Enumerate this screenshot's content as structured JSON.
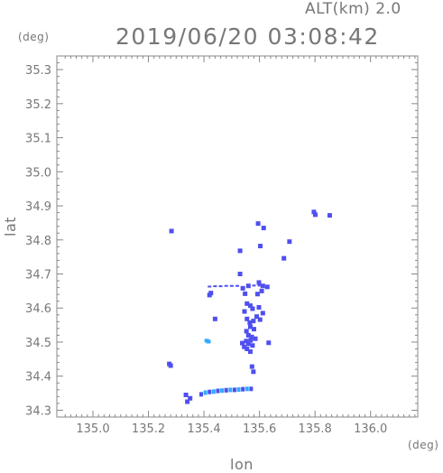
{
  "header": {
    "alt_label": "ALT(km)  2.0",
    "timestamp": "2019/06/20 03:08:42"
  },
  "chart_data": {
    "type": "scatter",
    "title": "2019/06/20 03:08:42",
    "xlabel": "lon",
    "ylabel": "lat",
    "x_unit": "(deg)",
    "y_unit": "(deg)",
    "xlim": [
      134.87,
      136.17
    ],
    "ylim": [
      34.28,
      35.34
    ],
    "xticks": [
      "135.0",
      "135.2",
      "135.4",
      "135.6",
      "135.8",
      "136.0"
    ],
    "yticks": [
      "34.3",
      "34.4",
      "34.5",
      "34.6",
      "34.7",
      "34.8",
      "34.9",
      "35.0",
      "35.1",
      "35.2",
      "35.3"
    ],
    "grid": false,
    "colors": {
      "primary": "#4f4ff0",
      "light": "#33aaff",
      "axis": "#888888"
    },
    "points": [
      {
        "x": 135.595,
        "y": 34.848
      },
      {
        "x": 135.615,
        "y": 34.835
      },
      {
        "x": 135.603,
        "y": 34.782
      },
      {
        "x": 135.53,
        "y": 34.768
      },
      {
        "x": 135.688,
        "y": 34.746
      },
      {
        "x": 135.708,
        "y": 34.795
      },
      {
        "x": 135.796,
        "y": 34.882
      },
      {
        "x": 135.801,
        "y": 34.874
      },
      {
        "x": 135.853,
        "y": 34.872
      },
      {
        "x": 135.283,
        "y": 34.826
      },
      {
        "x": 135.53,
        "y": 34.7
      },
      {
        "x": 135.54,
        "y": 34.658
      },
      {
        "x": 135.56,
        "y": 34.665
      },
      {
        "x": 135.548,
        "y": 34.642
      },
      {
        "x": 135.42,
        "y": 34.638
      },
      {
        "x": 135.425,
        "y": 34.644
      },
      {
        "x": 135.598,
        "y": 34.675
      },
      {
        "x": 135.612,
        "y": 34.665
      },
      {
        "x": 135.608,
        "y": 34.65
      },
      {
        "x": 135.628,
        "y": 34.662
      },
      {
        "x": 135.593,
        "y": 34.641
      },
      {
        "x": 135.555,
        "y": 34.613
      },
      {
        "x": 135.567,
        "y": 34.607
      },
      {
        "x": 135.546,
        "y": 34.59
      },
      {
        "x": 135.575,
        "y": 34.598
      },
      {
        "x": 135.598,
        "y": 34.602
      },
      {
        "x": 135.612,
        "y": 34.585
      },
      {
        "x": 135.555,
        "y": 34.568
      },
      {
        "x": 135.565,
        "y": 34.557
      },
      {
        "x": 135.578,
        "y": 34.562
      },
      {
        "x": 135.59,
        "y": 34.575
      },
      {
        "x": 135.602,
        "y": 34.566
      },
      {
        "x": 135.567,
        "y": 34.545
      },
      {
        "x": 135.58,
        "y": 34.538
      },
      {
        "x": 135.553,
        "y": 34.532
      },
      {
        "x": 135.56,
        "y": 34.52
      },
      {
        "x": 135.572,
        "y": 34.515
      },
      {
        "x": 135.585,
        "y": 34.51
      },
      {
        "x": 135.568,
        "y": 34.505
      },
      {
        "x": 135.552,
        "y": 34.503
      },
      {
        "x": 135.538,
        "y": 34.497
      },
      {
        "x": 135.56,
        "y": 34.495
      },
      {
        "x": 135.575,
        "y": 34.49
      },
      {
        "x": 135.555,
        "y": 34.48
      },
      {
        "x": 135.567,
        "y": 34.472
      },
      {
        "x": 135.545,
        "y": 34.486
      },
      {
        "x": 135.633,
        "y": 34.498
      },
      {
        "x": 135.44,
        "y": 34.568
      },
      {
        "x": 135.573,
        "y": 34.428
      },
      {
        "x": 135.578,
        "y": 34.413
      },
      {
        "x": 135.275,
        "y": 34.436
      },
      {
        "x": 135.28,
        "y": 34.431
      },
      {
        "x": 135.335,
        "y": 34.345
      },
      {
        "x": 135.35,
        "y": 34.335
      },
      {
        "x": 135.34,
        "y": 34.325
      }
    ],
    "light_points": [
      {
        "x": 135.41,
        "y": 34.503
      },
      {
        "x": 135.416,
        "y": 34.5
      }
    ],
    "band": [
      {
        "x": 135.39,
        "y": 34.348
      },
      {
        "x": 135.405,
        "y": 34.353
      },
      {
        "x": 135.42,
        "y": 34.355
      },
      {
        "x": 135.435,
        "y": 34.356
      },
      {
        "x": 135.45,
        "y": 34.358
      },
      {
        "x": 135.465,
        "y": 34.359
      },
      {
        "x": 135.48,
        "y": 34.36
      },
      {
        "x": 135.495,
        "y": 34.361
      },
      {
        "x": 135.51,
        "y": 34.361
      },
      {
        "x": 135.525,
        "y": 34.362
      },
      {
        "x": 135.54,
        "y": 34.363
      },
      {
        "x": 135.555,
        "y": 34.364
      },
      {
        "x": 135.57,
        "y": 34.364
      }
    ],
    "dashes": [
      {
        "x": 135.42,
        "y": 34.663
      },
      {
        "x": 135.44,
        "y": 34.664
      },
      {
        "x": 135.46,
        "y": 34.664
      },
      {
        "x": 135.48,
        "y": 34.665
      },
      {
        "x": 135.5,
        "y": 34.665
      },
      {
        "x": 135.52,
        "y": 34.665
      },
      {
        "x": 135.58,
        "y": 34.666
      },
      {
        "x": 135.6,
        "y": 34.666
      }
    ]
  }
}
